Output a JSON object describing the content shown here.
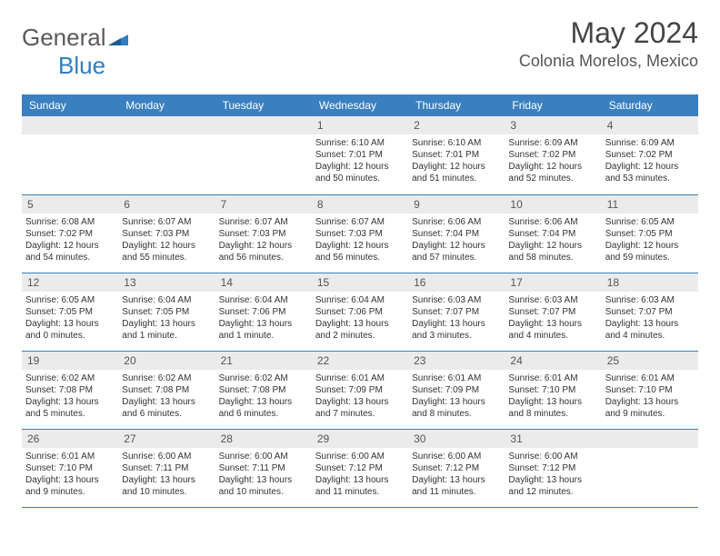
{
  "logo": {
    "text1": "General",
    "text2": "Blue"
  },
  "header": {
    "title": "May 2024",
    "location": "Colonia Morelos, Mexico"
  },
  "styling": {
    "header_bg": "#3a80c0",
    "header_fg": "#ffffff",
    "daynum_bg": "#ebebeb",
    "row_border": "#3a80c0",
    "body_text": "#333333",
    "title_color": "#444444",
    "page_bg": "#ffffff",
    "title_fontsize": 32,
    "location_fontsize": 18,
    "th_fontsize": 12,
    "cell_fontsize": 10
  },
  "weekdays": [
    "Sunday",
    "Monday",
    "Tuesday",
    "Wednesday",
    "Thursday",
    "Friday",
    "Saturday"
  ],
  "weeks": [
    [
      {
        "blank": true
      },
      {
        "blank": true
      },
      {
        "blank": true
      },
      {
        "day": "1",
        "sunrise": "Sunrise: 6:10 AM",
        "sunset": "Sunset: 7:01 PM",
        "daylight": "Daylight: 12 hours and 50 minutes."
      },
      {
        "day": "2",
        "sunrise": "Sunrise: 6:10 AM",
        "sunset": "Sunset: 7:01 PM",
        "daylight": "Daylight: 12 hours and 51 minutes."
      },
      {
        "day": "3",
        "sunrise": "Sunrise: 6:09 AM",
        "sunset": "Sunset: 7:02 PM",
        "daylight": "Daylight: 12 hours and 52 minutes."
      },
      {
        "day": "4",
        "sunrise": "Sunrise: 6:09 AM",
        "sunset": "Sunset: 7:02 PM",
        "daylight": "Daylight: 12 hours and 53 minutes."
      }
    ],
    [
      {
        "day": "5",
        "sunrise": "Sunrise: 6:08 AM",
        "sunset": "Sunset: 7:02 PM",
        "daylight": "Daylight: 12 hours and 54 minutes."
      },
      {
        "day": "6",
        "sunrise": "Sunrise: 6:07 AM",
        "sunset": "Sunset: 7:03 PM",
        "daylight": "Daylight: 12 hours and 55 minutes."
      },
      {
        "day": "7",
        "sunrise": "Sunrise: 6:07 AM",
        "sunset": "Sunset: 7:03 PM",
        "daylight": "Daylight: 12 hours and 56 minutes."
      },
      {
        "day": "8",
        "sunrise": "Sunrise: 6:07 AM",
        "sunset": "Sunset: 7:03 PM",
        "daylight": "Daylight: 12 hours and 56 minutes."
      },
      {
        "day": "9",
        "sunrise": "Sunrise: 6:06 AM",
        "sunset": "Sunset: 7:04 PM",
        "daylight": "Daylight: 12 hours and 57 minutes."
      },
      {
        "day": "10",
        "sunrise": "Sunrise: 6:06 AM",
        "sunset": "Sunset: 7:04 PM",
        "daylight": "Daylight: 12 hours and 58 minutes."
      },
      {
        "day": "11",
        "sunrise": "Sunrise: 6:05 AM",
        "sunset": "Sunset: 7:05 PM",
        "daylight": "Daylight: 12 hours and 59 minutes."
      }
    ],
    [
      {
        "day": "12",
        "sunrise": "Sunrise: 6:05 AM",
        "sunset": "Sunset: 7:05 PM",
        "daylight": "Daylight: 13 hours and 0 minutes."
      },
      {
        "day": "13",
        "sunrise": "Sunrise: 6:04 AM",
        "sunset": "Sunset: 7:05 PM",
        "daylight": "Daylight: 13 hours and 1 minute."
      },
      {
        "day": "14",
        "sunrise": "Sunrise: 6:04 AM",
        "sunset": "Sunset: 7:06 PM",
        "daylight": "Daylight: 13 hours and 1 minute."
      },
      {
        "day": "15",
        "sunrise": "Sunrise: 6:04 AM",
        "sunset": "Sunset: 7:06 PM",
        "daylight": "Daylight: 13 hours and 2 minutes."
      },
      {
        "day": "16",
        "sunrise": "Sunrise: 6:03 AM",
        "sunset": "Sunset: 7:07 PM",
        "daylight": "Daylight: 13 hours and 3 minutes."
      },
      {
        "day": "17",
        "sunrise": "Sunrise: 6:03 AM",
        "sunset": "Sunset: 7:07 PM",
        "daylight": "Daylight: 13 hours and 4 minutes."
      },
      {
        "day": "18",
        "sunrise": "Sunrise: 6:03 AM",
        "sunset": "Sunset: 7:07 PM",
        "daylight": "Daylight: 13 hours and 4 minutes."
      }
    ],
    [
      {
        "day": "19",
        "sunrise": "Sunrise: 6:02 AM",
        "sunset": "Sunset: 7:08 PM",
        "daylight": "Daylight: 13 hours and 5 minutes."
      },
      {
        "day": "20",
        "sunrise": "Sunrise: 6:02 AM",
        "sunset": "Sunset: 7:08 PM",
        "daylight": "Daylight: 13 hours and 6 minutes."
      },
      {
        "day": "21",
        "sunrise": "Sunrise: 6:02 AM",
        "sunset": "Sunset: 7:08 PM",
        "daylight": "Daylight: 13 hours and 6 minutes."
      },
      {
        "day": "22",
        "sunrise": "Sunrise: 6:01 AM",
        "sunset": "Sunset: 7:09 PM",
        "daylight": "Daylight: 13 hours and 7 minutes."
      },
      {
        "day": "23",
        "sunrise": "Sunrise: 6:01 AM",
        "sunset": "Sunset: 7:09 PM",
        "daylight": "Daylight: 13 hours and 8 minutes."
      },
      {
        "day": "24",
        "sunrise": "Sunrise: 6:01 AM",
        "sunset": "Sunset: 7:10 PM",
        "daylight": "Daylight: 13 hours and 8 minutes."
      },
      {
        "day": "25",
        "sunrise": "Sunrise: 6:01 AM",
        "sunset": "Sunset: 7:10 PM",
        "daylight": "Daylight: 13 hours and 9 minutes."
      }
    ],
    [
      {
        "day": "26",
        "sunrise": "Sunrise: 6:01 AM",
        "sunset": "Sunset: 7:10 PM",
        "daylight": "Daylight: 13 hours and 9 minutes."
      },
      {
        "day": "27",
        "sunrise": "Sunrise: 6:00 AM",
        "sunset": "Sunset: 7:11 PM",
        "daylight": "Daylight: 13 hours and 10 minutes."
      },
      {
        "day": "28",
        "sunrise": "Sunrise: 6:00 AM",
        "sunset": "Sunset: 7:11 PM",
        "daylight": "Daylight: 13 hours and 10 minutes."
      },
      {
        "day": "29",
        "sunrise": "Sunrise: 6:00 AM",
        "sunset": "Sunset: 7:12 PM",
        "daylight": "Daylight: 13 hours and 11 minutes."
      },
      {
        "day": "30",
        "sunrise": "Sunrise: 6:00 AM",
        "sunset": "Sunset: 7:12 PM",
        "daylight": "Daylight: 13 hours and 11 minutes."
      },
      {
        "day": "31",
        "sunrise": "Sunrise: 6:00 AM",
        "sunset": "Sunset: 7:12 PM",
        "daylight": "Daylight: 13 hours and 12 minutes."
      },
      {
        "blank": true
      }
    ]
  ]
}
